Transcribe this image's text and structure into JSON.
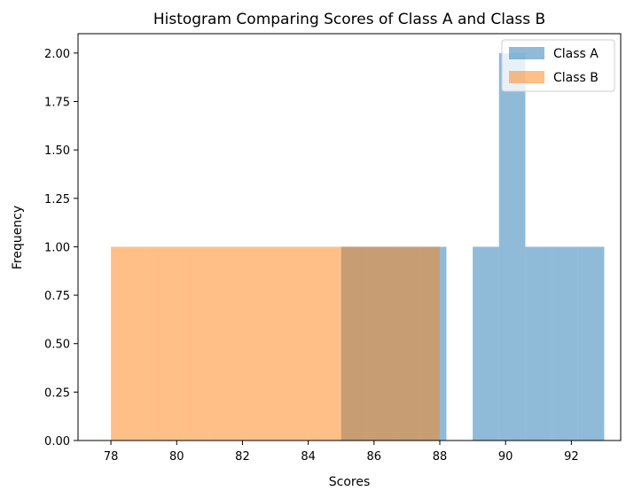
{
  "chart_data": {
    "type": "histogram",
    "title": "Histogram Comparing Scores of Class A and Class B",
    "xlabel": "Scores",
    "ylabel": "Frequency",
    "xlim": [
      77,
      93.5
    ],
    "ylim": [
      0,
      2.1
    ],
    "xticks": [
      78,
      80,
      82,
      84,
      86,
      88,
      90,
      92
    ],
    "yticks": [
      "0.00",
      "0.25",
      "0.50",
      "0.75",
      "1.00",
      "1.25",
      "1.50",
      "1.75",
      "2.00"
    ],
    "legend_position": "top-right",
    "grid": false,
    "series": [
      {
        "name": "Class A",
        "color": "#1f77b4",
        "opacity": 0.5,
        "bins": [
          {
            "x0": 85,
            "x1": 85.8,
            "count": 1
          },
          {
            "x0": 85.8,
            "x1": 86.6,
            "count": 1
          },
          {
            "x0": 86.6,
            "x1": 87.4,
            "count": 1
          },
          {
            "x0": 87.4,
            "x1": 88.2,
            "count": 1
          },
          {
            "x0": 89.0,
            "x1": 89.8,
            "count": 1
          },
          {
            "x0": 89.8,
            "x1": 90.6,
            "count": 2
          },
          {
            "x0": 90.6,
            "x1": 91.4,
            "count": 1
          },
          {
            "x0": 91.4,
            "x1": 92.2,
            "count": 1
          },
          {
            "x0": 92.2,
            "x1": 93.0,
            "count": 1
          }
        ]
      },
      {
        "name": "Class B",
        "color": "#ff7f0e",
        "opacity": 0.5,
        "bins": [
          {
            "x0": 78,
            "x1": 79,
            "count": 1
          },
          {
            "x0": 79,
            "x1": 80,
            "count": 1
          },
          {
            "x0": 80,
            "x1": 81,
            "count": 1
          },
          {
            "x0": 81,
            "x1": 82,
            "count": 1
          },
          {
            "x0": 82,
            "x1": 83,
            "count": 1
          },
          {
            "x0": 83,
            "x1": 84,
            "count": 1
          },
          {
            "x0": 84,
            "x1": 85,
            "count": 1
          },
          {
            "x0": 85,
            "x1": 86,
            "count": 1
          },
          {
            "x0": 86,
            "x1": 87,
            "count": 1
          },
          {
            "x0": 87,
            "x1": 88,
            "count": 1
          }
        ]
      }
    ]
  }
}
